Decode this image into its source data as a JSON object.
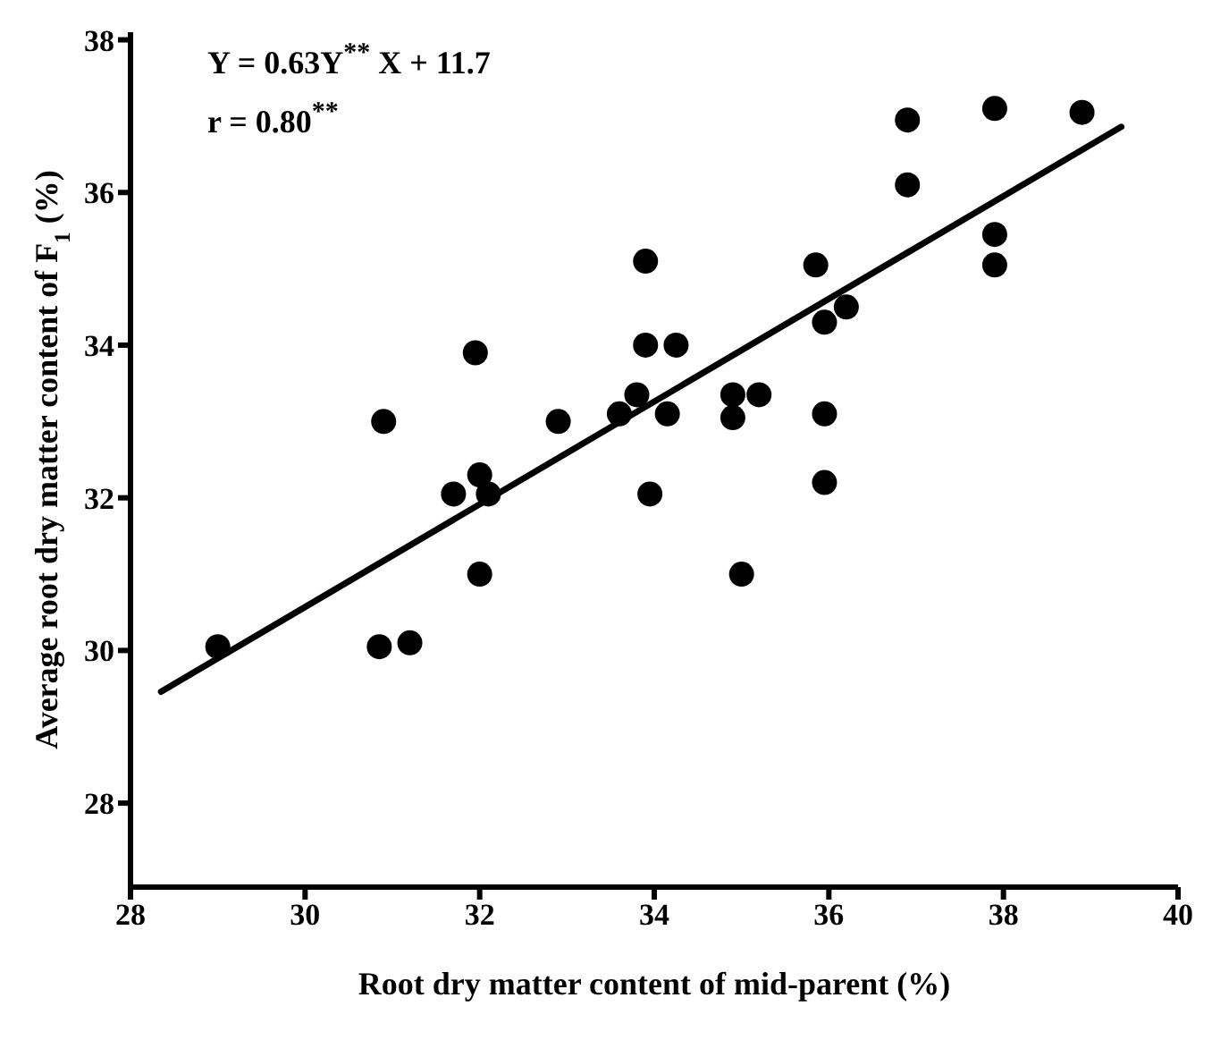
{
  "chart_data": {
    "type": "scatter",
    "xlabel": "Root dry matter content of mid-parent (%)",
    "ylabel": "Average root dry matter content of F$_{1}$ (%)",
    "annotations": [
      "Y = 0.63Y$^{**}$ X + 11.7",
      "r = 0.80$^{**}$"
    ],
    "xlim": [
      28,
      40
    ],
    "xticks": [
      28,
      30,
      32,
      34,
      36,
      38,
      40
    ],
    "ylim": [
      26.9,
      38.1
    ],
    "yticks": [
      28,
      30,
      32,
      34,
      36,
      38
    ],
    "grid": false,
    "legend": false,
    "marker": "circle",
    "series": [
      {
        "type": "scatter",
        "color": "#000000",
        "x": [
          29.0,
          30.85,
          31.2,
          30.9,
          31.7,
          31.95,
          32.0,
          32.1,
          32.0,
          32.9,
          33.6,
          33.8,
          33.9,
          33.9,
          33.95,
          34.15,
          34.25,
          34.9,
          34.9,
          35.2,
          35.0,
          35.85,
          35.95,
          35.95,
          35.95,
          36.2,
          36.9,
          36.9,
          37.9,
          37.9,
          37.9,
          38.9
        ],
        "values": [
          30.05,
          30.05,
          30.1,
          33.0,
          32.05,
          33.9,
          32.3,
          32.05,
          31.0,
          33.0,
          33.1,
          33.35,
          35.1,
          34.0,
          32.05,
          33.1,
          34.0,
          33.35,
          33.05,
          33.35,
          31.0,
          35.05,
          34.3,
          33.1,
          32.2,
          34.5,
          36.95,
          36.1,
          37.1,
          35.45,
          35.05,
          37.05
        ]
      },
      {
        "type": "line",
        "color": "#000000",
        "line_style": "solid",
        "marker": "none",
        "x": [
          28.35,
          39.35
        ],
        "values": [
          29.46,
          36.86
        ]
      }
    ]
  }
}
